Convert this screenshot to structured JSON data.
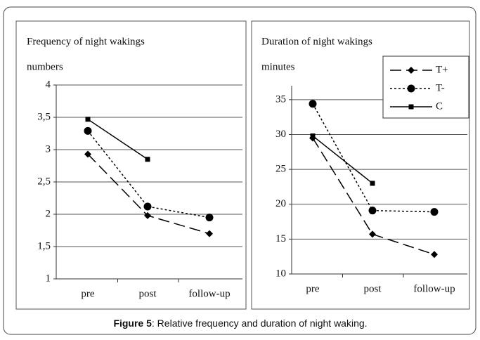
{
  "chart_data": [
    {
      "type": "line",
      "title": "Frequency of night wakings",
      "y_label": "numbers",
      "categories": [
        "pre",
        "post",
        "follow-up"
      ],
      "ylim": [
        1,
        4
      ],
      "yticks": [
        1,
        {
          "value": 1.5,
          "label": "1,5"
        },
        2,
        {
          "value": 2.5,
          "label": "2,5"
        },
        3,
        {
          "value": 3.5,
          "label": "3,5"
        },
        4
      ],
      "grid": true,
      "series": [
        {
          "name": "T+",
          "color": "#000000",
          "values": [
            2.93,
            1.98,
            1.7
          ]
        },
        {
          "name": "T-",
          "color": "#000000",
          "values": [
            3.29,
            2.12,
            1.95
          ]
        },
        {
          "name": "C",
          "color": "#000000",
          "values": [
            3.47,
            2.85,
            null
          ]
        }
      ]
    },
    {
      "type": "line",
      "title": "Duration of night wakings",
      "y_label": "minutes",
      "categories": [
        "pre",
        "post",
        "follow-up"
      ],
      "ylim": [
        10,
        37
      ],
      "yticks": [
        10,
        15,
        20,
        25,
        30,
        35
      ],
      "grid": true,
      "legend": "upper right",
      "series": [
        {
          "name": "T+",
          "color": "#000000",
          "values": [
            29.5,
            15.7,
            12.8
          ]
        },
        {
          "name": "T-",
          "color": "#000000",
          "values": [
            34.4,
            19.1,
            18.9
          ]
        },
        {
          "name": "C",
          "color": "#000000",
          "values": [
            29.8,
            23.0,
            null
          ]
        }
      ]
    }
  ],
  "caption": {
    "label": "Figure 5",
    "text": ": Relative frequency and duration of night waking."
  }
}
